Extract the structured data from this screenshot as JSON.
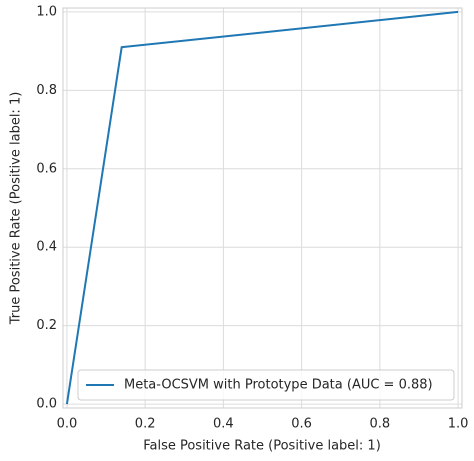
{
  "chart_data": {
    "type": "line",
    "xlabel": "False Positive Rate (Positive label: 1)",
    "ylabel": "True Positive Rate (Positive label: 1)",
    "series": [
      {
        "name": "Meta-OCSVM with Prototype Data (AUC = 0.88)",
        "color": "#1f77b4",
        "x": [
          0,
          0.14,
          1
        ],
        "values": [
          0,
          0.91,
          1
        ]
      }
    ],
    "xlim": [
      -0.01,
      1.01
    ],
    "ylim": [
      -0.01,
      1.01
    ],
    "xticks": [
      {
        "value": 0,
        "label": "0.0"
      },
      0.2,
      0.4,
      0.6,
      0.8,
      {
        "value": 1,
        "label": "1.0"
      }
    ],
    "yticks": [
      {
        "value": 0,
        "label": "0.0"
      },
      0.2,
      0.4,
      0.6,
      0.8,
      {
        "value": 1,
        "label": "1.0"
      }
    ],
    "grid": true,
    "legend": "lower right"
  }
}
